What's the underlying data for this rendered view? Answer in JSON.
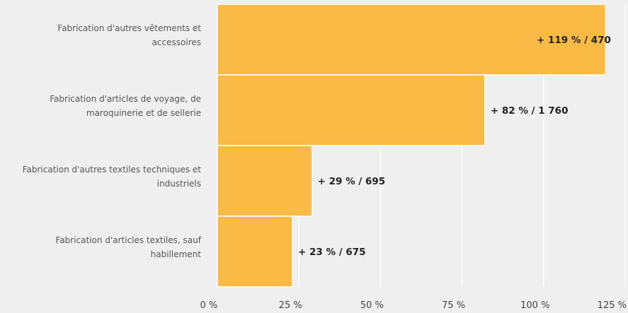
{
  "chart_data": {
    "type": "bar",
    "orientation": "horizontal",
    "title": "",
    "xlabel": "",
    "ylabel": "",
    "categories": [
      [
        "Fabrication d'autres vêtements et",
        "accessoires"
      ],
      [
        "Fabrication d'articles de voyage, de",
        "maroquinerie et de sellerie"
      ],
      [
        "Fabrication d'autres textiles techniques et",
        "industriels"
      ],
      [
        "Fabrication d'articles textiles, sauf",
        "habillement"
      ]
    ],
    "values": [
      119,
      82,
      29,
      23
    ],
    "data_labels": [
      "+ 119 % / 470",
      "+ 82 % / 1 760",
      "+ 29 % / 695",
      "+ 23 % / 675"
    ],
    "xlim": [
      0,
      125
    ],
    "xticks": [
      0,
      25,
      50,
      75,
      100,
      125
    ],
    "xtick_labels": [
      "0 %",
      "25 %",
      "50 %",
      "75 %",
      "100 %",
      "125 %"
    ],
    "grid": true,
    "legend": "none",
    "colors": {
      "bar": "#f9bb45",
      "background": "#efefef",
      "grid": "#ffffff"
    }
  }
}
